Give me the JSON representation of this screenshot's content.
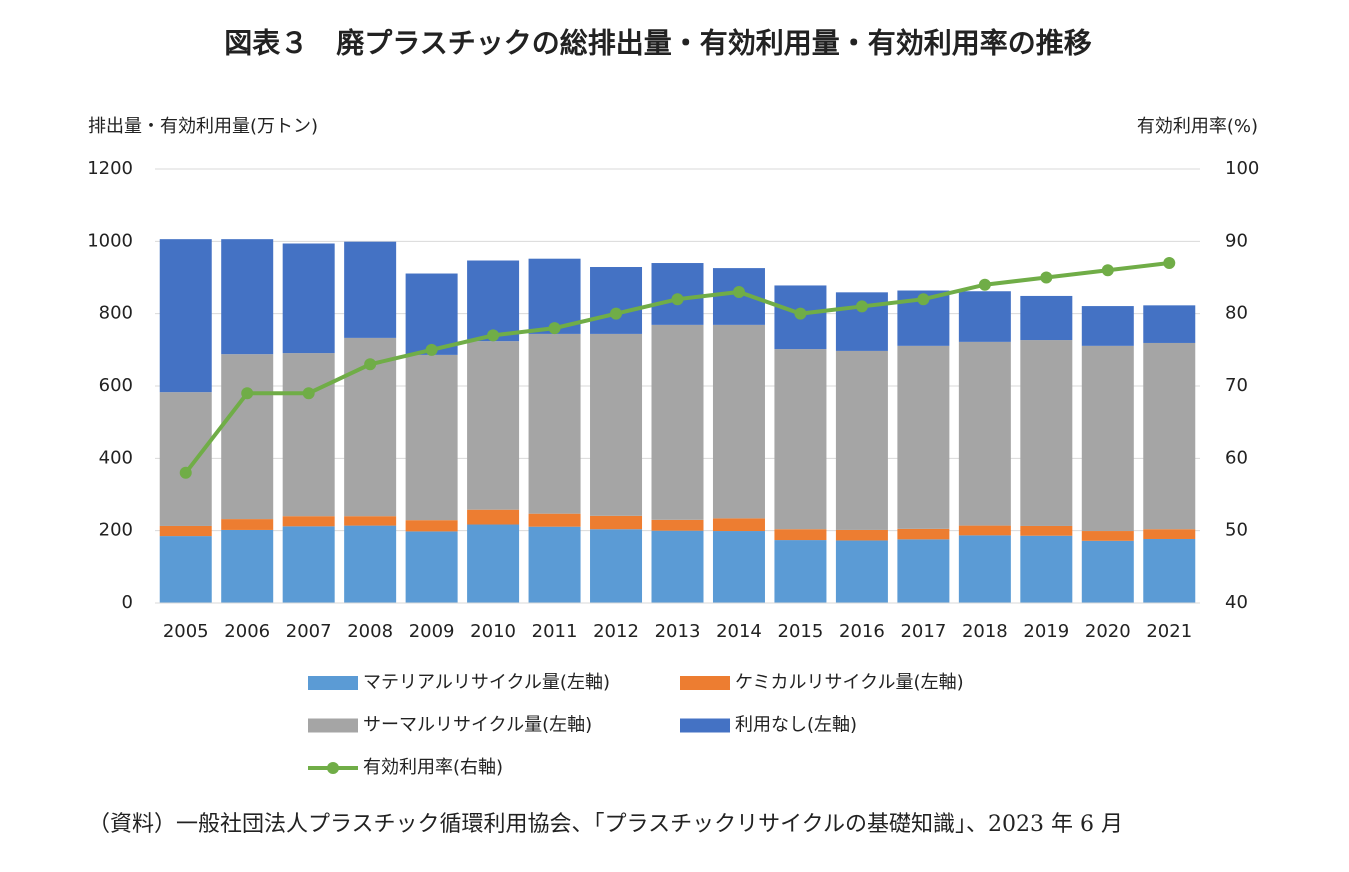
{
  "chart_data": {
    "type": "bar",
    "stacked": true,
    "title": "図表３　廃プラスチックの総排出量・有効利用量・有効利用率の推移",
    "y_label": "排出量・有効利用量(万トン)",
    "y2_label": "有効利用率(%)",
    "source": "（資料）一般社団法人プラスチック循環利用協会、「プラスチックリサイクルの基礎知識」、2023 年 6 月",
    "categories": [
      "2005",
      "2006",
      "2007",
      "2008",
      "2009",
      "2010",
      "2011",
      "2012",
      "2013",
      "2014",
      "2015",
      "2016",
      "2017",
      "2018",
      "2019",
      "2020",
      "2021"
    ],
    "ylim": [
      0,
      1200
    ],
    "yticks": [
      0,
      200,
      400,
      600,
      800,
      1000,
      1200
    ],
    "y2lim": [
      40,
      100
    ],
    "y2ticks": [
      40,
      50,
      60,
      70,
      80,
      90,
      100
    ],
    "grid": true,
    "series": [
      {
        "name": "マテリアルリサイクル量(左軸)",
        "color": "#5b9bd5",
        "values": [
          185,
          202,
          212,
          214,
          198,
          217,
          211,
          204,
          200,
          199,
          174,
          173,
          176,
          187,
          186,
          172,
          177
        ]
      },
      {
        "name": "ケミカルリサイクル量(左軸)",
        "color": "#ed7d31",
        "values": [
          28,
          30,
          28,
          26,
          31,
          41,
          36,
          37,
          30,
          35,
          30,
          29,
          29,
          27,
          27,
          27,
          27
        ]
      },
      {
        "name": "サーマルリサイクル量(左軸)",
        "color": "#a5a5a5",
        "values": [
          370,
          456,
          451,
          493,
          457,
          466,
          497,
          503,
          539,
          535,
          498,
          495,
          506,
          508,
          514,
          512,
          515
        ]
      },
      {
        "name": "利用なし(左軸)",
        "color": "#4472c4",
        "values": [
          423,
          318,
          303,
          266,
          225,
          223,
          208,
          185,
          171,
          157,
          176,
          162,
          153,
          140,
          122,
          110,
          104
        ]
      },
      {
        "name": "有効利用率(右軸)",
        "color": "#70ad47",
        "type": "line",
        "axis": "y2",
        "values": [
          58,
          69,
          69,
          73,
          75,
          77,
          78,
          80,
          82,
          83,
          80,
          81,
          82,
          84,
          85,
          86,
          87
        ]
      }
    ]
  }
}
